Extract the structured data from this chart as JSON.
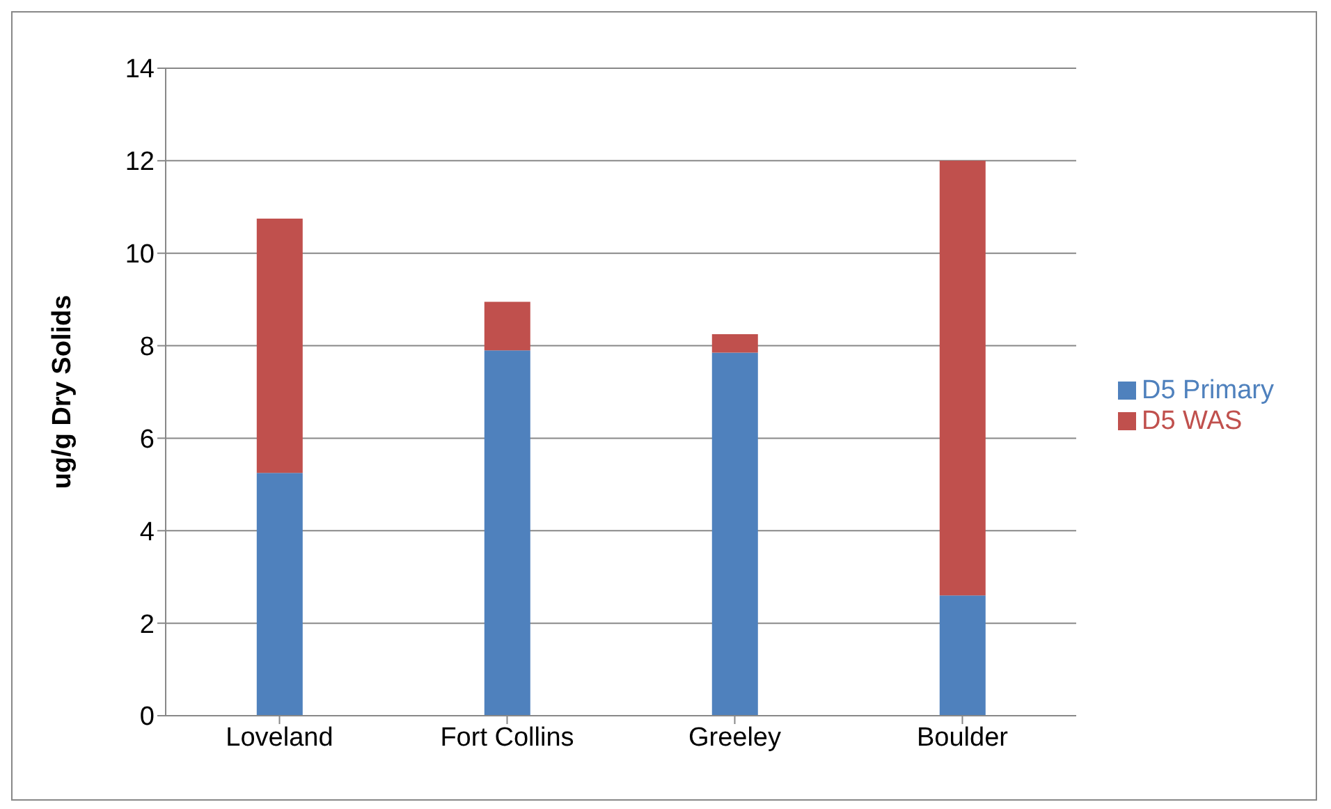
{
  "chart_data": {
    "type": "bar",
    "stacked": true,
    "ylabel": "ug/g Dry Solids",
    "categories": [
      "Loveland",
      "Fort Collins",
      "Greeley",
      "Boulder"
    ],
    "series": [
      {
        "name": "D5 Primary",
        "color": "#4f81bd",
        "values": [
          5.25,
          7.9,
          7.85,
          2.6
        ]
      },
      {
        "name": "D5 WAS",
        "color": "#c0504d",
        "values": [
          5.5,
          1.05,
          0.4,
          9.4
        ]
      }
    ],
    "ylim": [
      0,
      14
    ],
    "yticks": [
      0,
      2,
      4,
      6,
      8,
      10,
      12,
      14
    ],
    "grid": "y",
    "legend": "right"
  }
}
